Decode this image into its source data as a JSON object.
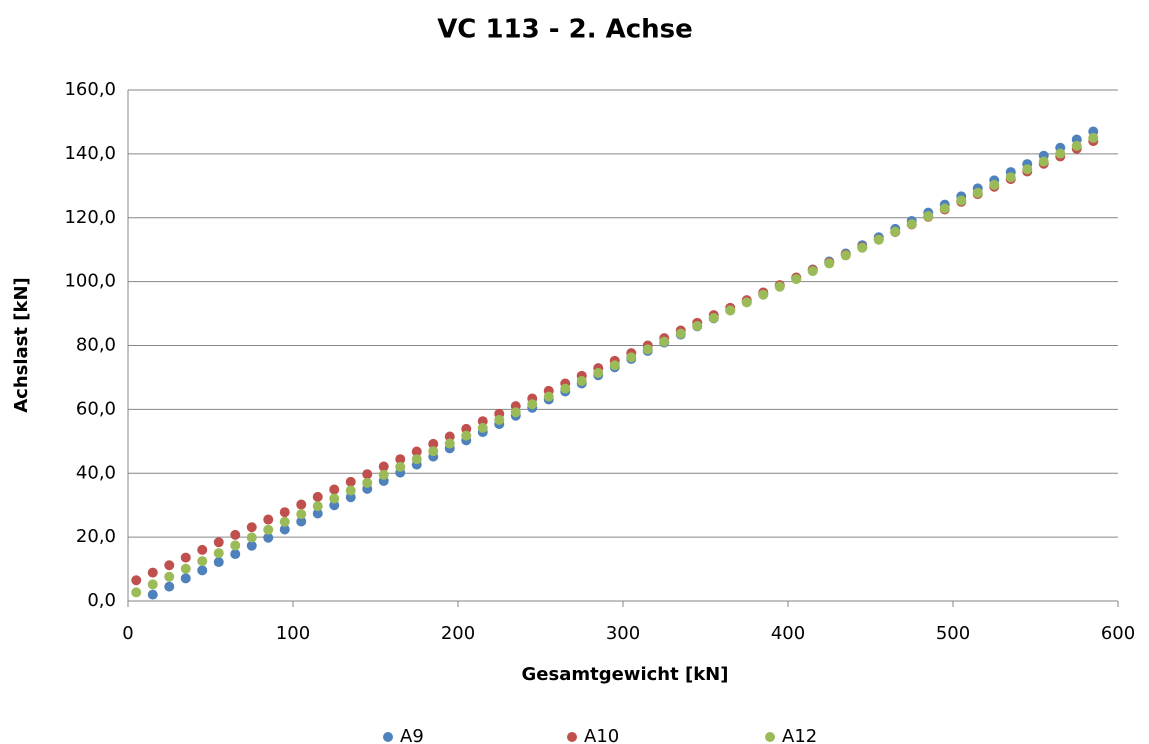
{
  "chart_data": {
    "type": "scatter",
    "title": "VC 113 - 2. Achse",
    "xlabel": "Gesamtgewicht [kN]",
    "ylabel": "Achslast [kN]",
    "x": [
      5,
      15,
      25,
      35,
      45,
      55,
      65,
      75,
      85,
      95,
      105,
      115,
      125,
      135,
      145,
      155,
      165,
      175,
      185,
      195,
      205,
      215,
      225,
      235,
      245,
      255,
      265,
      275,
      285,
      295,
      305,
      315,
      325,
      335,
      345,
      355,
      365,
      375,
      385,
      395,
      405,
      415,
      425,
      435,
      445,
      455,
      465,
      475,
      485,
      495,
      505,
      515,
      525,
      535,
      545,
      555,
      565,
      575,
      585
    ],
    "series": [
      {
        "name": "A9",
        "color": "#4f81bd",
        "values": [
          null,
          2.0,
          4.5,
          7.1,
          9.6,
          12.2,
          14.7,
          17.3,
          19.8,
          22.4,
          24.9,
          27.4,
          30.0,
          32.5,
          35.1,
          37.6,
          40.2,
          42.7,
          45.2,
          47.8,
          50.3,
          52.9,
          55.4,
          58.0,
          60.5,
          63.1,
          65.6,
          68.1,
          70.7,
          73.2,
          75.8,
          78.3,
          80.9,
          83.4,
          86.0,
          88.5,
          91.0,
          93.6,
          96.1,
          98.7,
          101.2,
          103.8,
          106.3,
          108.8,
          111.4,
          113.9,
          116.5,
          119.0,
          121.6,
          124.1,
          126.7,
          129.2,
          131.7,
          134.3,
          136.8,
          139.4,
          141.9,
          144.5,
          147.0
        ]
      },
      {
        "name": "A10",
        "color": "#c0504d",
        "values": [
          6.5,
          8.9,
          11.2,
          13.6,
          16.0,
          18.4,
          20.7,
          23.1,
          25.5,
          27.8,
          30.2,
          32.6,
          34.9,
          37.3,
          39.7,
          42.1,
          44.4,
          46.8,
          49.2,
          51.5,
          53.9,
          56.3,
          58.6,
          61.0,
          63.4,
          65.8,
          68.1,
          70.5,
          72.9,
          75.2,
          77.6,
          80.0,
          82.3,
          84.7,
          87.1,
          89.5,
          91.8,
          94.2,
          96.6,
          98.9,
          101.3,
          103.7,
          106.0,
          108.4,
          110.8,
          113.2,
          115.5,
          117.9,
          120.3,
          122.6,
          125.0,
          127.4,
          129.7,
          132.1,
          134.5,
          136.9,
          139.2,
          141.6,
          144.0
        ]
      },
      {
        "name": "A12",
        "color": "#9bbb59",
        "values": [
          2.7,
          5.2,
          7.6,
          10.1,
          12.5,
          15.0,
          17.4,
          19.9,
          22.3,
          24.8,
          27.2,
          29.7,
          32.1,
          34.6,
          37.0,
          39.5,
          42.0,
          44.4,
          46.9,
          49.3,
          51.8,
          54.2,
          56.7,
          59.1,
          61.6,
          64.0,
          66.5,
          68.9,
          71.4,
          73.8,
          76.3,
          78.8,
          81.2,
          83.7,
          86.1,
          88.6,
          91.0,
          93.5,
          95.9,
          98.4,
          100.8,
          103.3,
          105.7,
          108.2,
          110.6,
          113.1,
          115.6,
          118.0,
          120.5,
          122.9,
          125.4,
          127.8,
          130.3,
          132.7,
          135.2,
          137.6,
          140.1,
          142.5,
          145.0
        ]
      }
    ],
    "xlim": [
      0,
      600
    ],
    "xticks": [
      0,
      100,
      200,
      300,
      400,
      500,
      600
    ],
    "ylim": [
      0,
      160
    ],
    "yticks": [
      {
        "value": 0,
        "label": "0,0"
      },
      {
        "value": 20,
        "label": "20,0"
      },
      {
        "value": 40,
        "label": "40,0"
      },
      {
        "value": 60,
        "label": "60,0"
      },
      {
        "value": 80,
        "label": "80,0"
      },
      {
        "value": 100,
        "label": "100,0"
      },
      {
        "value": 120,
        "label": "120,0"
      },
      {
        "value": 140,
        "label": "140,0"
      },
      {
        "value": 160,
        "label": "160,0"
      }
    ],
    "grid": true,
    "legend": "bottom"
  }
}
